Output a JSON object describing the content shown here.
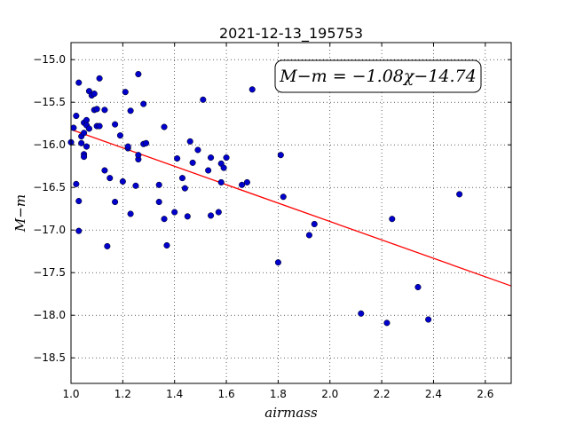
{
  "chart_data": {
    "type": "scatter",
    "title": "2021-12-13_195753",
    "xlabel": "airmass",
    "ylabel": "M−m",
    "xlim": [
      1.0,
      2.7
    ],
    "ylim": [
      -18.8,
      -14.8
    ],
    "x_ticks": [
      1.0,
      1.2,
      1.4,
      1.6,
      1.8,
      2.0,
      2.2,
      2.4,
      2.6
    ],
    "x_tick_labels": [
      "1.0",
      "1.2",
      "1.4",
      "1.6",
      "1.8",
      "2.0",
      "2.2",
      "2.4",
      "2.6"
    ],
    "y_ticks": [
      -15.0,
      -15.5,
      -16.0,
      -16.5,
      -17.0,
      -17.5,
      -18.0,
      -18.5
    ],
    "y_tick_labels": [
      "−15.0",
      "−15.5",
      "−16.0",
      "−16.5",
      "−17.0",
      "−17.5",
      "−18.0",
      "−18.5"
    ],
    "grid": true,
    "annotation": "M−m = −1.08χ−14.74",
    "fit_line": {
      "slope": -1.08,
      "intercept": -14.74,
      "color": "#ff0000"
    },
    "marker_color": "#0000cc",
    "points": [
      [
        1.0,
        -15.97
      ],
      [
        1.01,
        -15.8
      ],
      [
        1.02,
        -15.66
      ],
      [
        1.02,
        -16.46
      ],
      [
        1.03,
        -15.27
      ],
      [
        1.03,
        -16.66
      ],
      [
        1.03,
        -17.01
      ],
      [
        1.04,
        -15.9
      ],
      [
        1.04,
        -15.98
      ],
      [
        1.05,
        -15.86
      ],
      [
        1.05,
        -15.74
      ],
      [
        1.05,
        -16.11
      ],
      [
        1.05,
        -16.14
      ],
      [
        1.06,
        -15.71
      ],
      [
        1.06,
        -16.02
      ],
      [
        1.06,
        -15.77
      ],
      [
        1.07,
        -15.37
      ],
      [
        1.07,
        -15.81
      ],
      [
        1.08,
        -15.42
      ],
      [
        1.09,
        -15.4
      ],
      [
        1.09,
        -15.59
      ],
      [
        1.1,
        -15.78
      ],
      [
        1.1,
        -15.58
      ],
      [
        1.11,
        -15.78
      ],
      [
        1.11,
        -15.22
      ],
      [
        1.13,
        -16.3
      ],
      [
        1.13,
        -15.59
      ],
      [
        1.14,
        -17.19
      ],
      [
        1.15,
        -16.39
      ],
      [
        1.17,
        -16.67
      ],
      [
        1.17,
        -15.76
      ],
      [
        1.19,
        -15.89
      ],
      [
        1.2,
        -16.43
      ],
      [
        1.21,
        -15.38
      ],
      [
        1.22,
        -16.04
      ],
      [
        1.22,
        -16.02
      ],
      [
        1.23,
        -16.81
      ],
      [
        1.23,
        -15.6
      ],
      [
        1.25,
        -16.48
      ],
      [
        1.26,
        -15.17
      ],
      [
        1.26,
        -16.17
      ],
      [
        1.26,
        -16.12
      ],
      [
        1.28,
        -15.99
      ],
      [
        1.28,
        -15.52
      ],
      [
        1.29,
        -15.98
      ],
      [
        1.34,
        -16.67
      ],
      [
        1.34,
        -16.47
      ],
      [
        1.36,
        -15.79
      ],
      [
        1.36,
        -16.87
      ],
      [
        1.37,
        -17.18
      ],
      [
        1.4,
        -16.79
      ],
      [
        1.41,
        -16.16
      ],
      [
        1.43,
        -16.39
      ],
      [
        1.44,
        -16.51
      ],
      [
        1.45,
        -16.84
      ],
      [
        1.46,
        -15.96
      ],
      [
        1.47,
        -16.21
      ],
      [
        1.49,
        -16.06
      ],
      [
        1.51,
        -15.47
      ],
      [
        1.53,
        -16.3
      ],
      [
        1.54,
        -16.15
      ],
      [
        1.54,
        -16.83
      ],
      [
        1.57,
        -16.79
      ],
      [
        1.58,
        -16.44
      ],
      [
        1.58,
        -16.22
      ],
      [
        1.59,
        -16.27
      ],
      [
        1.6,
        -16.15
      ],
      [
        1.66,
        -16.47
      ],
      [
        1.68,
        -16.44
      ],
      [
        1.7,
        -15.35
      ],
      [
        1.8,
        -17.38
      ],
      [
        1.81,
        -16.12
      ],
      [
        1.82,
        -16.61
      ],
      [
        1.92,
        -17.06
      ],
      [
        1.94,
        -16.93
      ],
      [
        2.12,
        -17.98
      ],
      [
        2.22,
        -18.09
      ],
      [
        2.24,
        -16.87
      ],
      [
        2.34,
        -17.67
      ],
      [
        2.38,
        -18.05
      ],
      [
        2.5,
        -16.58
      ]
    ]
  }
}
